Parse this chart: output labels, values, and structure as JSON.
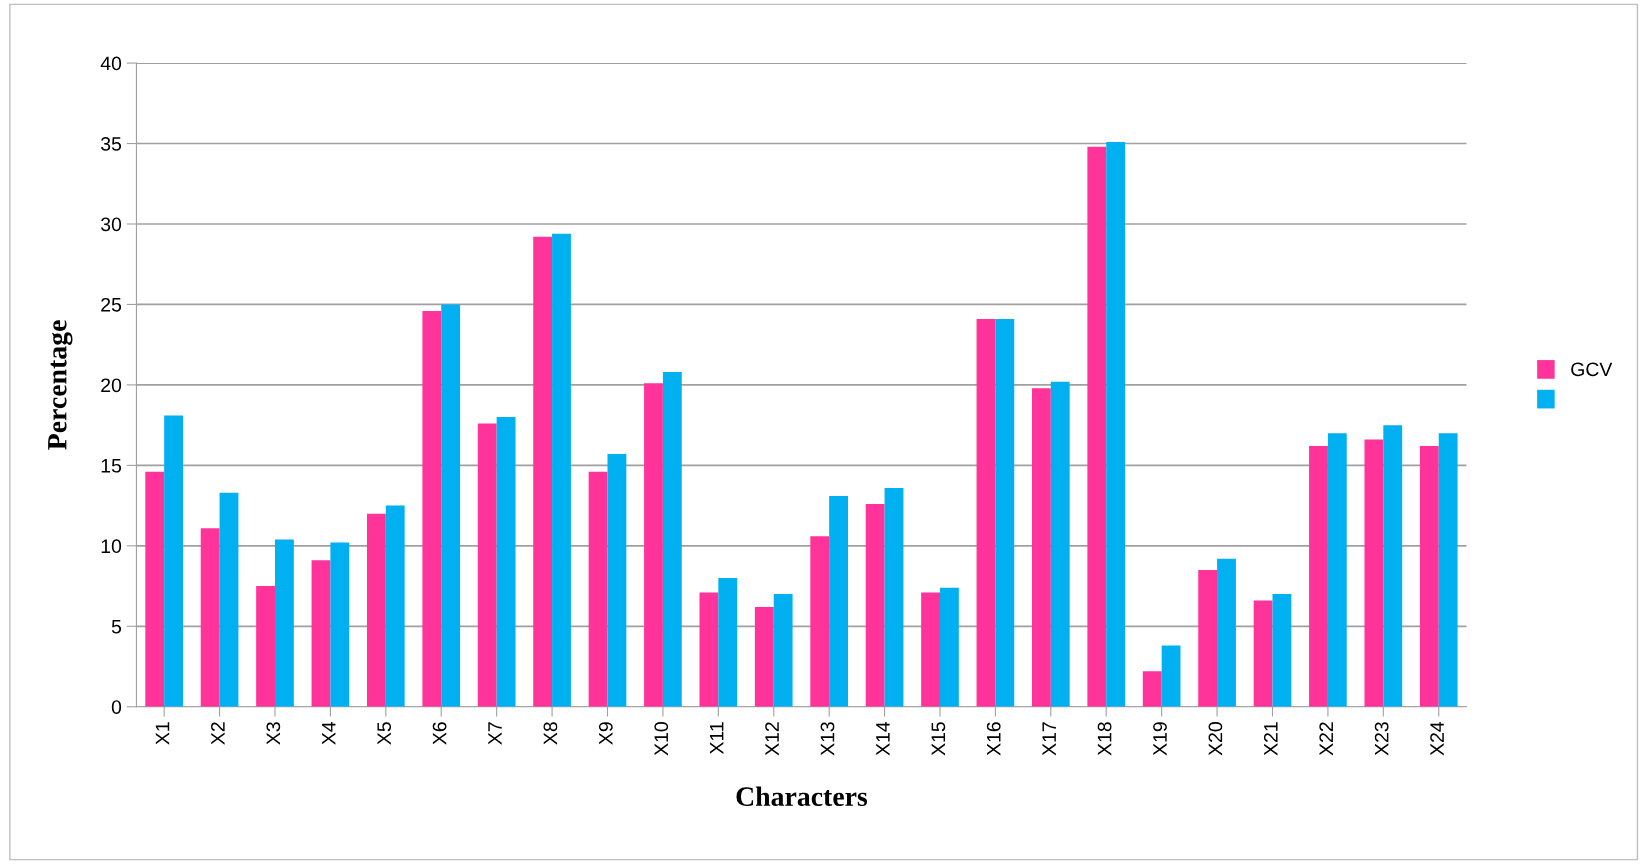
{
  "chart_data": {
    "type": "bar",
    "xlabel": "Characters",
    "ylabel": "Percentage",
    "categories": [
      "X1",
      "X2",
      "X3",
      "X4",
      "X5",
      "X6",
      "X7",
      "X8",
      "X9",
      "X10",
      "X11",
      "X12",
      "X13",
      "X14",
      "X15",
      "X16",
      "X17",
      "X18",
      "X19",
      "X20",
      "X21",
      "X22",
      "X23",
      "X24"
    ],
    "series": [
      {
        "name": "GCV",
        "color": "#ff3399",
        "values": [
          14.6,
          11.1,
          7.5,
          9.1,
          12.0,
          24.6,
          17.6,
          29.2,
          14.6,
          20.1,
          7.1,
          6.2,
          10.6,
          12.6,
          7.1,
          24.1,
          19.8,
          34.8,
          2.2,
          8.5,
          6.6,
          16.2,
          16.6,
          16.2
        ]
      },
      {
        "color": "#00b0f0",
        "values": [
          18.1,
          13.3,
          10.4,
          10.2,
          12.5,
          25.0,
          18.0,
          29.4,
          15.7,
          20.8,
          8.0,
          7.0,
          13.1,
          13.6,
          7.4,
          24.1,
          20.2,
          35.1,
          3.8,
          9.2,
          7.0,
          17.0,
          17.5,
          17.0
        ]
      }
    ],
    "ylim": [
      0,
      40
    ],
    "yticks": [
      0,
      5,
      10,
      15,
      20,
      25,
      30,
      35,
      40
    ],
    "grid": "y",
    "legend": "right"
  }
}
